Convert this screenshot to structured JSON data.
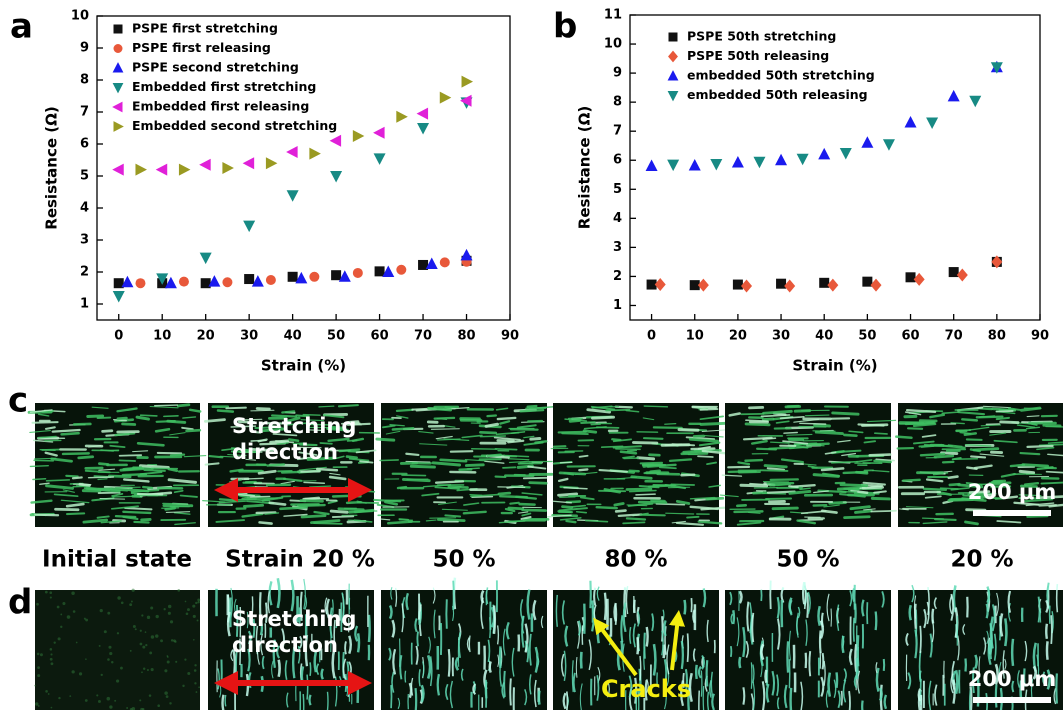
{
  "chart_data": [
    {
      "type": "scatter",
      "panel": "a",
      "xlabel": "Strain (%)",
      "ylabel": "Resistance (Ω)",
      "xlim": [
        -5,
        90
      ],
      "ylim": [
        0.5,
        10
      ],
      "xticks": [
        0,
        10,
        20,
        30,
        40,
        50,
        60,
        70,
        80,
        90
      ],
      "yticks": [
        1,
        2,
        3,
        4,
        5,
        6,
        7,
        8,
        9,
        10
      ],
      "series": [
        {
          "name": "PSPE first stretching",
          "color": "#111111",
          "marker": "square",
          "x": [
            0,
            10,
            20,
            30,
            40,
            50,
            60,
            70,
            80
          ],
          "values": [
            1.65,
            1.65,
            1.65,
            1.78,
            1.85,
            1.9,
            2.02,
            2.22,
            2.35
          ]
        },
        {
          "name": "PSPE first releasing",
          "color": "#e8583a",
          "marker": "circle",
          "x": [
            5,
            15,
            25,
            35,
            45,
            55,
            65,
            75,
            80
          ],
          "values": [
            1.65,
            1.7,
            1.68,
            1.75,
            1.85,
            1.97,
            2.07,
            2.3,
            2.32
          ]
        },
        {
          "name": "PSPE second stretching",
          "color": "#1a1aee",
          "marker": "triangle-up",
          "x": [
            2,
            12,
            22,
            32,
            42,
            52,
            62,
            72,
            80
          ],
          "values": [
            1.68,
            1.65,
            1.7,
            1.7,
            1.8,
            1.85,
            2.0,
            2.25,
            2.52
          ]
        },
        {
          "name": "Embedded first stretching",
          "color": "#178a84",
          "marker": "triangle-down",
          "x": [
            0,
            10,
            20,
            30,
            40,
            50,
            60,
            70,
            80
          ],
          "values": [
            1.25,
            1.8,
            2.45,
            3.45,
            4.4,
            5.0,
            5.55,
            6.5,
            7.3
          ]
        },
        {
          "name": "Embedded first releasing",
          "color": "#e020d8",
          "marker": "triangle-left",
          "x": [
            0,
            10,
            20,
            30,
            40,
            50,
            60,
            70,
            80
          ],
          "values": [
            5.2,
            5.2,
            5.35,
            5.4,
            5.75,
            6.1,
            6.35,
            6.95,
            7.35
          ]
        },
        {
          "name": "Embedded second stretching",
          "color": "#9a9a22",
          "marker": "triangle-right",
          "x": [
            5,
            15,
            25,
            35,
            45,
            55,
            65,
            75,
            80
          ],
          "values": [
            5.2,
            5.2,
            5.25,
            5.4,
            5.7,
            6.25,
            6.85,
            7.45,
            7.95
          ]
        }
      ]
    },
    {
      "type": "scatter",
      "panel": "b",
      "xlabel": "Strain (%)",
      "ylabel": "Resistance (Ω)",
      "xlim": [
        -5,
        90
      ],
      "ylim": [
        0.5,
        11
      ],
      "xticks": [
        0,
        10,
        20,
        30,
        40,
        50,
        60,
        70,
        80,
        90
      ],
      "yticks": [
        1,
        2,
        3,
        4,
        5,
        6,
        7,
        8,
        9,
        10,
        11
      ],
      "series": [
        {
          "name": "PSPE 50th stretching",
          "color": "#111111",
          "marker": "square",
          "x": [
            0,
            10,
            20,
            30,
            40,
            50,
            60,
            70,
            80
          ],
          "values": [
            1.72,
            1.7,
            1.72,
            1.75,
            1.78,
            1.82,
            1.97,
            2.15,
            2.5
          ]
        },
        {
          "name": "PSPE 50th releasing",
          "color": "#e8583a",
          "marker": "diamond",
          "x": [
            2,
            12,
            22,
            32,
            42,
            52,
            62,
            72,
            80
          ],
          "values": [
            1.72,
            1.7,
            1.67,
            1.67,
            1.7,
            1.7,
            1.9,
            2.05,
            2.5
          ]
        },
        {
          "name": "embedded 50th stretching",
          "color": "#1a1aee",
          "marker": "triangle-up",
          "x": [
            0,
            10,
            20,
            30,
            40,
            50,
            60,
            70,
            80
          ],
          "values": [
            5.8,
            5.82,
            5.92,
            6.0,
            6.2,
            6.6,
            7.3,
            8.2,
            9.2
          ]
        },
        {
          "name": "embedded 50th releasing",
          "color": "#178a84",
          "marker": "triangle-down",
          "x": [
            5,
            15,
            25,
            35,
            45,
            55,
            65,
            75,
            80
          ],
          "values": [
            5.85,
            5.87,
            5.95,
            6.05,
            6.25,
            6.55,
            7.3,
            8.05,
            9.2
          ]
        }
      ]
    }
  ],
  "figure": {
    "panel_c": "c",
    "panel_d": "d",
    "captions": [
      "Initial state",
      "Strain 20 %",
      "50 %",
      "80 %",
      "50 %",
      "20 %"
    ],
    "direction_label": [
      "Stretching",
      "direction"
    ],
    "scale_bar": "200 μm",
    "crack_label": "Cracks"
  }
}
